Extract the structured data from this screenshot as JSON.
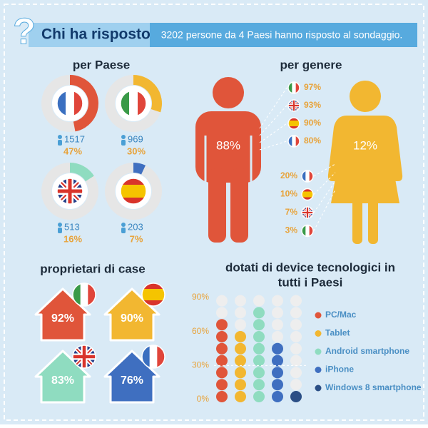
{
  "header": {
    "icon": "?",
    "title": "Chi ha risposto",
    "subtitle": "3202 persone da 4 Paesi hanno risposto al sondaggio."
  },
  "countries": {
    "title": "per Paese",
    "items": [
      {
        "flag": "fr",
        "count": 1517,
        "percent": 47,
        "percent_label": "47%",
        "color": "#e0553a"
      },
      {
        "flag": "it",
        "count": 969,
        "percent": 30,
        "percent_label": "30%",
        "color": "#f2b731"
      },
      {
        "flag": "uk",
        "count": 513,
        "percent": 16,
        "percent_label": "16%",
        "color": "#8fdcc0"
      },
      {
        "flag": "es",
        "count": 203,
        "percent": 7,
        "percent_label": "7%",
        "color": "#3f6fc0"
      }
    ]
  },
  "gender": {
    "title": "per genere",
    "male": {
      "label": "88%",
      "color": "#e0553a",
      "rows": [
        {
          "flag": "it",
          "label": "97%"
        },
        {
          "flag": "uk",
          "label": "93%"
        },
        {
          "flag": "es",
          "label": "90%"
        },
        {
          "flag": "fr",
          "label": "80%"
        }
      ]
    },
    "female": {
      "label": "12%",
      "color": "#f2b731",
      "rows": [
        {
          "flag": "fr",
          "label": "20%"
        },
        {
          "flag": "es",
          "label": "10%"
        },
        {
          "flag": "uk",
          "label": "7%"
        },
        {
          "flag": "it",
          "label": "3%"
        }
      ]
    }
  },
  "homes": {
    "title": "proprietari di case",
    "items": [
      {
        "flag": "it",
        "label": "92%",
        "color": "#e0553a"
      },
      {
        "flag": "es",
        "label": "90%",
        "color": "#f2b731"
      },
      {
        "flag": "uk",
        "label": "83%",
        "color": "#8fdcc0"
      },
      {
        "flag": "fr",
        "label": "76%",
        "color": "#3f6fc0"
      }
    ]
  },
  "chart_data": {
    "type": "dots",
    "title": [
      "dotati di device tecnologici in",
      "tutti i Paesi"
    ],
    "ylim": [
      0,
      90
    ],
    "yticks": [
      {
        "value": 0,
        "label": "0%"
      },
      {
        "value": 30,
        "label": "30%"
      },
      {
        "value": 60,
        "label": "60%"
      },
      {
        "value": 90,
        "label": "90%"
      }
    ],
    "categories": [
      "PC/Mac",
      "Tablet",
      "Android smartphone",
      "iPhone",
      "Windows 8 smartphone"
    ],
    "colors": [
      "#e0553a",
      "#f2b731",
      "#8fdcc0",
      "#3f6fc0",
      "#2b4f86"
    ],
    "values": [
      70,
      58,
      82,
      52,
      3
    ]
  }
}
